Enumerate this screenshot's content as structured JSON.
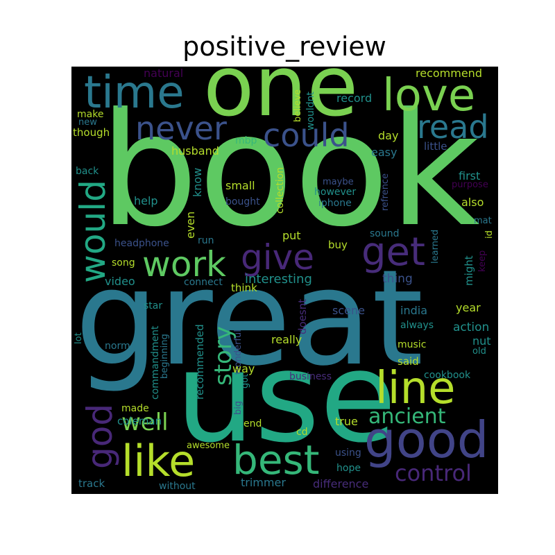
{
  "title": "positive_review",
  "words": {
    "book": "book",
    "great": "great",
    "use": "use",
    "one": "one",
    "time": "time",
    "love": "love",
    "never": "never",
    "could": "could",
    "read": "read",
    "would": "would",
    "work": "work",
    "give": "give",
    "get": "get",
    "line": "line",
    "good": "good",
    "like": "like",
    "best": "best",
    "god": "god",
    "well": "well",
    "ancient": "ancient",
    "control": "control",
    "story": "story",
    "natural": "natural",
    "recommend": "recommend",
    "make": "make",
    "new": "new",
    "though": "though",
    "husband": "husband",
    "mbp": "mbp",
    "believe": "believe",
    "wouldnt": "wouldnt",
    "record": "record",
    "day": "day",
    "easy": "easy",
    "little": "little",
    "back": "back",
    "know": "know",
    "small": "small",
    "maybe": "maybe",
    "however": "however",
    "refrence": "refrence",
    "first": "first",
    "purpose": "purpose",
    "help": "help",
    "bought": "bought",
    "iphone": "iphone",
    "also": "also",
    "collection": "collection",
    "even": "even",
    "sound": "sound",
    "mat": "mat",
    "id": "id",
    "headphone": "headphone",
    "run": "run",
    "put": "put",
    "buy": "buy",
    "learned": "learned",
    "might": "might",
    "keep": "keep",
    "song": "song",
    "video": "video",
    "connect": "connect",
    "think": "think",
    "interesting": "interesting",
    "thing": "thing",
    "star": "star",
    "doesnt": "doesnt",
    "india": "india",
    "year": "year",
    "lot": "lot",
    "recommended": "recommended",
    "scene": "scene",
    "always": "always",
    "action": "action",
    "normal": "normal",
    "commandment": "commandment",
    "beginning": "beginning",
    "wonderful": "wonderful",
    "really": "really",
    "music": "music",
    "nut": "nut",
    "old": "old",
    "said": "said",
    "way": "way",
    "business": "business",
    "cookbook": "cookbook",
    "made": "made",
    "got": "got",
    "big": "big",
    "coleman": "coleman",
    "end": "end",
    "true": "true",
    "cd": "cd",
    "awesome": "awesome",
    "using": "using",
    "hope": "hope",
    "track": "track",
    "trimmer": "trimmer",
    "difference": "difference",
    "without": "without"
  }
}
